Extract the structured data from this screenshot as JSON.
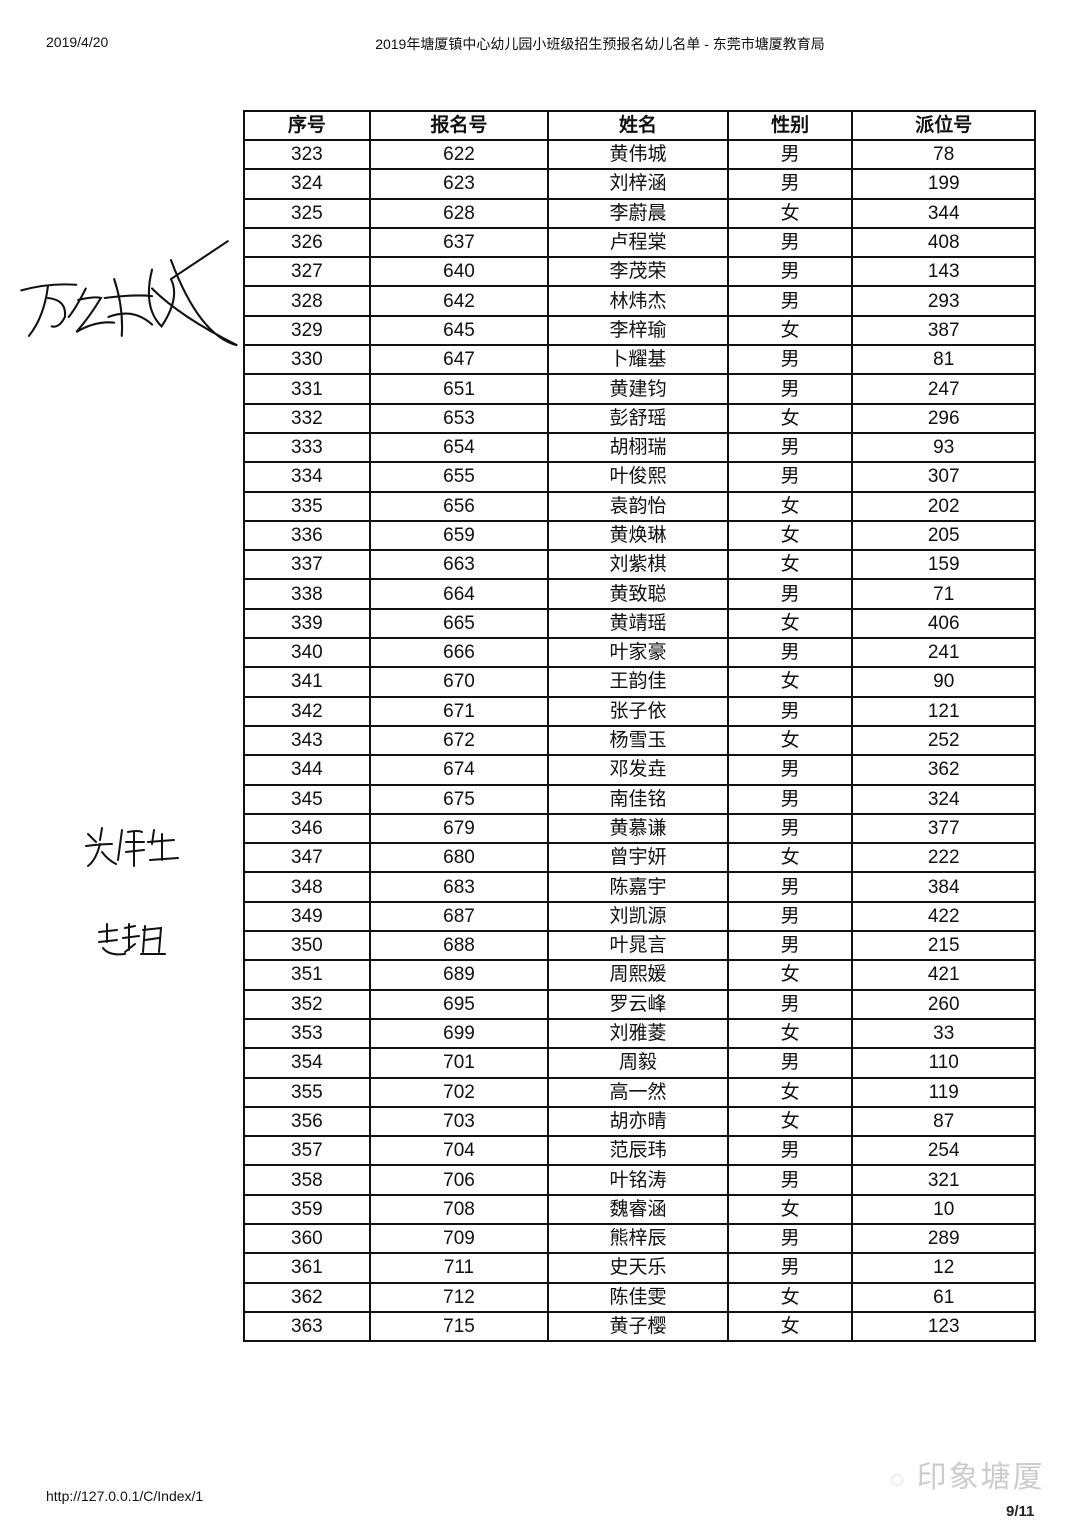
{
  "header": {
    "date": "2019/4/20",
    "title": "2019年塘厦镇中心幼儿园小班级招生预报名幼儿名单 - 东莞市塘厦教育局"
  },
  "table": {
    "columns": [
      "序号",
      "报名号",
      "姓名",
      "性别",
      "派位号"
    ],
    "rows": [
      [
        "323",
        "622",
        "黄伟城",
        "男",
        "78"
      ],
      [
        "324",
        "623",
        "刘梓涵",
        "男",
        "199"
      ],
      [
        "325",
        "628",
        "李蔚晨",
        "女",
        "344"
      ],
      [
        "326",
        "637",
        "卢程棠",
        "男",
        "408"
      ],
      [
        "327",
        "640",
        "李茂荣",
        "男",
        "143"
      ],
      [
        "328",
        "642",
        "林炜杰",
        "男",
        "293"
      ],
      [
        "329",
        "645",
        "李梓瑜",
        "女",
        "387"
      ],
      [
        "330",
        "647",
        "卜耀基",
        "男",
        "81"
      ],
      [
        "331",
        "651",
        "黄建钧",
        "男",
        "247"
      ],
      [
        "332",
        "653",
        "彭舒瑶",
        "女",
        "296"
      ],
      [
        "333",
        "654",
        "胡栩瑞",
        "男",
        "93"
      ],
      [
        "334",
        "655",
        "叶俊熙",
        "男",
        "307"
      ],
      [
        "335",
        "656",
        "袁韵怡",
        "女",
        "202"
      ],
      [
        "336",
        "659",
        "黄焕琳",
        "女",
        "205"
      ],
      [
        "337",
        "663",
        "刘紫棋",
        "女",
        "159"
      ],
      [
        "338",
        "664",
        "黄致聪",
        "男",
        "71"
      ],
      [
        "339",
        "665",
        "黄靖瑶",
        "女",
        "406"
      ],
      [
        "340",
        "666",
        "叶家豪",
        "男",
        "241"
      ],
      [
        "341",
        "670",
        "王韵佳",
        "女",
        "90"
      ],
      [
        "342",
        "671",
        "张子依",
        "男",
        "121"
      ],
      [
        "343",
        "672",
        "杨雪玉",
        "女",
        "252"
      ],
      [
        "344",
        "674",
        "邓发垚",
        "男",
        "362"
      ],
      [
        "345",
        "675",
        "南佳铭",
        "男",
        "324"
      ],
      [
        "346",
        "679",
        "黄慕谦",
        "男",
        "377"
      ],
      [
        "347",
        "680",
        "曾宇妍",
        "女",
        "222"
      ],
      [
        "348",
        "683",
        "陈嘉宇",
        "男",
        "384"
      ],
      [
        "349",
        "687",
        "刘凯源",
        "男",
        "422"
      ],
      [
        "350",
        "688",
        "叶晁言",
        "男",
        "215"
      ],
      [
        "351",
        "689",
        "周熙媛",
        "女",
        "421"
      ],
      [
        "352",
        "695",
        "罗云峰",
        "男",
        "260"
      ],
      [
        "353",
        "699",
        "刘雅菱",
        "女",
        "33"
      ],
      [
        "354",
        "701",
        "周毅",
        "男",
        "110"
      ],
      [
        "355",
        "702",
        "高一然",
        "女",
        "119"
      ],
      [
        "356",
        "703",
        "胡亦晴",
        "女",
        "87"
      ],
      [
        "357",
        "704",
        "范辰玮",
        "男",
        "254"
      ],
      [
        "358",
        "706",
        "叶铭涛",
        "男",
        "321"
      ],
      [
        "359",
        "708",
        "魏睿涵",
        "女",
        "10"
      ],
      [
        "360",
        "709",
        "熊梓辰",
        "男",
        "289"
      ],
      [
        "361",
        "711",
        "史天乐",
        "男",
        "12"
      ],
      [
        "362",
        "712",
        "陈佳雯",
        "女",
        "61"
      ],
      [
        "363",
        "715",
        "黄子樱",
        "女",
        "123"
      ]
    ]
  },
  "signatures": [
    "万继东",
    "吴伟生",
    "赵韬"
  ],
  "footer": {
    "url": "http://127.0.0.1/C/Index/1",
    "watermark": "印象塘厦",
    "page": "9/11"
  }
}
